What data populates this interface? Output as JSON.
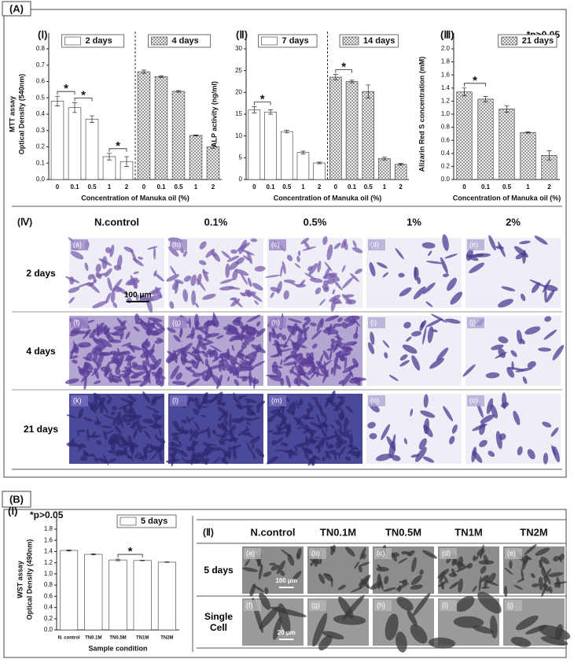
{
  "section_labels": {
    "a": "(A)",
    "b": "(B)"
  },
  "chart_data": [
    {
      "type": "bar",
      "panel": "(Ⅰ)",
      "y_label": [
        "MTT assay",
        "Optical Density (540nm)"
      ],
      "x_label": "Concentration of Manuka oil (%)",
      "categories": [
        "0",
        "0.1",
        "0.5",
        "1",
        "2"
      ],
      "series": [
        {
          "name": "2 days",
          "color": "#ffffff",
          "hatch": false,
          "values": [
            0.48,
            0.44,
            0.37,
            0.14,
            0.11
          ],
          "errors": [
            0.03,
            0.03,
            0.02,
            0.02,
            0.03
          ]
        },
        {
          "name": "4 days",
          "color": "#ffffff",
          "hatch": true,
          "values": [
            0.66,
            0.63,
            0.54,
            0.27,
            0.2
          ],
          "errors": [
            0.01,
            0.005,
            0.005,
            0.003,
            0.01
          ]
        }
      ],
      "ylim": [
        0,
        0.8
      ],
      "yticks": [
        {
          "value": 0,
          "label": "0.0"
        },
        0.1,
        0.2,
        0.3,
        0.4,
        0.5,
        0.6,
        0.7,
        0.8
      ],
      "significance": [
        {
          "label": "*",
          "series": 0,
          "from": 0,
          "to": 1
        },
        {
          "label": "*",
          "series": 0,
          "from": 1,
          "to": 2
        },
        {
          "label": "*",
          "series": 0,
          "from": 3,
          "to": 4
        }
      ]
    },
    {
      "type": "bar",
      "panel": "(Ⅱ)",
      "y_label": [
        "ALP activity (ng/ml)"
      ],
      "x_label": "Concentration of Manuka oil (%)",
      "categories": [
        "0",
        "0.1",
        "0.5",
        "1",
        "2"
      ],
      "series": [
        {
          "name": "7 days",
          "color": "#ffffff",
          "hatch": false,
          "values": [
            16,
            15.5,
            11,
            6.2,
            3.8
          ],
          "errors": [
            0.7,
            0.5,
            0.3,
            0.3,
            0.2
          ]
        },
        {
          "name": "14 days",
          "color": "#ffffff",
          "hatch": true,
          "values": [
            23.5,
            22.5,
            20.2,
            4.8,
            3.5
          ],
          "errors": [
            0.6,
            0.3,
            1.5,
            0.3,
            0.2
          ]
        }
      ],
      "ylim": [
        0,
        30
      ],
      "yticks": [
        0,
        5,
        10,
        15,
        20,
        25,
        30
      ],
      "significance": [
        {
          "label": "*",
          "series": 0,
          "from": 0,
          "to": 1
        },
        {
          "label": "*",
          "series": 1,
          "from": 0,
          "to": 1
        }
      ]
    },
    {
      "type": "bar",
      "panel": "(Ⅲ)",
      "note": "*p>0.05",
      "y_label": [
        "Alizarin Red S concentration (mM)"
      ],
      "x_label": "Concentration of Manuka oil (%)",
      "categories": [
        "0",
        "0.1",
        "0.5",
        "1",
        "2"
      ],
      "series": [
        {
          "name": "21 days",
          "color": "#ffffff",
          "hatch": true,
          "values": [
            1.34,
            1.23,
            1.08,
            0.72,
            0.37
          ],
          "errors": [
            0.06,
            0.04,
            0.05,
            0.01,
            0.07
          ]
        }
      ],
      "ylim": [
        0,
        2
      ],
      "yticks": [
        {
          "value": 0,
          "label": "0.0"
        },
        0.2,
        0.4,
        0.6,
        0.8,
        {
          "value": 1,
          "label": "1.0"
        },
        1.2,
        1.4,
        1.6,
        1.8,
        {
          "value": 2,
          "label": "2.0"
        }
      ],
      "significance": [
        {
          "label": "*",
          "series": 0,
          "from": 0,
          "to": 1
        }
      ]
    },
    {
      "type": "bar",
      "panel": "(Ⅰ)",
      "note": "*p>0.05",
      "y_label": [
        "WST assay",
        "Optical Density (490nm)"
      ],
      "x_label": "Sample condition",
      "categories": [
        "N. control",
        "TN0.1M",
        "TN0.5M",
        "TN1M",
        "TN2M"
      ],
      "series": [
        {
          "name": "5 days",
          "color": "#ffffff",
          "hatch": false,
          "values": [
            1.42,
            1.35,
            1.25,
            1.24,
            1.21
          ],
          "errors": [
            0.01,
            0.01,
            0.015,
            0.005,
            0.005
          ]
        }
      ],
      "ylim": [
        0,
        1.8
      ],
      "yticks": [
        {
          "value": 0,
          "label": "0.0"
        },
        0.2,
        0.4,
        0.6,
        0.8,
        {
          "value": 1,
          "label": "1.0"
        },
        1.2,
        1.4,
        1.6,
        1.8
      ],
      "significance": [
        {
          "label": "*",
          "series": 0,
          "from": 2,
          "to": 3
        }
      ]
    }
  ],
  "micrographs_a": {
    "panel": "(Ⅳ)",
    "columns": [
      "N.control",
      "0.1%",
      "0.5%",
      "1%",
      "2%"
    ],
    "rows": [
      "2 days",
      "4 days",
      "21 days"
    ],
    "cells": [
      "(a)",
      "(b)",
      "(c)",
      "(d)",
      "(e)",
      "(f)",
      "(g)",
      "(h)",
      "(i)",
      "(j)",
      "(k)",
      "(l)",
      "(m)",
      "(n)",
      "(o)"
    ],
    "scale_bars": [
      "100 μm"
    ]
  },
  "micrographs_b": {
    "panel": "(Ⅱ)",
    "columns": [
      "N.control",
      "TN0.1M",
      "TN0.5M",
      "TN1M",
      "TN2M"
    ],
    "rows": [
      "5 days",
      "Single Cell"
    ],
    "cells": [
      "(a)",
      "(b)",
      "(c)",
      "(d)",
      "(e)",
      "(f)",
      "(g)",
      "(h)",
      "(i)",
      "(j)"
    ],
    "scale_bars": [
      "100 μm",
      "20 μm"
    ]
  }
}
